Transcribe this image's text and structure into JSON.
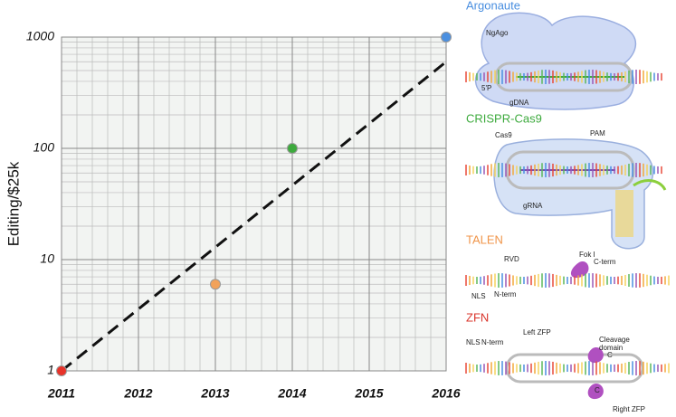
{
  "chart_data": {
    "type": "scatter",
    "ylabel": "Editing/$25k",
    "x": [
      2011,
      2013,
      2014,
      2016
    ],
    "values": [
      1,
      6,
      100,
      1000
    ],
    "colors": [
      "#e8332a",
      "#f2a25a",
      "#3daa3d",
      "#4a8fe0"
    ],
    "trend": {
      "x": [
        2011,
        2016
      ],
      "values": [
        1,
        600
      ],
      "color": "#111111",
      "dashed": true
    },
    "xlim": [
      2011,
      2016
    ],
    "ylim": [
      1,
      1000
    ],
    "log_y": true,
    "xticks": [
      2011,
      2012,
      2013,
      2014,
      2015,
      2016
    ],
    "yticks": [
      1,
      10,
      100,
      1000
    ],
    "grid": true
  },
  "diagrams": [
    {
      "title": "Argonaute",
      "color": "#4a8fe0",
      "labels": [
        "NgAgo",
        "5'P",
        "gDNA"
      ]
    },
    {
      "title": "CRISPR-Cas9",
      "color": "#3daa3d",
      "labels": [
        "Cas9",
        "PAM",
        "gRNA"
      ]
    },
    {
      "title": "TALEN",
      "color": "#f0954a",
      "labels": [
        "RVD",
        "Fok I",
        "C-term",
        "NLS",
        "N-term"
      ]
    },
    {
      "title": "ZFN",
      "color": "#d9342b",
      "labels": [
        "NLS",
        "N-term",
        "Left ZFP",
        "Cleavage",
        "domain",
        "C",
        "C",
        "Right ZFP"
      ]
    }
  ]
}
